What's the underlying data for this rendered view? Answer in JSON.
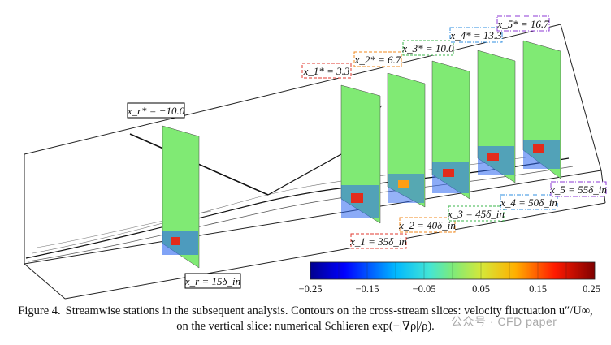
{
  "figure": {
    "stations_star": [
      {
        "label": "x_r* = −10.0",
        "color": "#000000"
      },
      {
        "label": "x_1* = 3.3",
        "color": "#e23a2f"
      },
      {
        "label": "x_2* = 6.7",
        "color": "#f08a1e"
      },
      {
        "label": "x_3* = 10.0",
        "color": "#39b54a"
      },
      {
        "label": "x_4* = 13.3",
        "color": "#2f8fe0"
      },
      {
        "label": "x_5* = 16.7",
        "color": "#8e3ad6"
      }
    ],
    "stations_delta": [
      {
        "label": "x_r = 15δ_in",
        "color": "#000000"
      },
      {
        "label": "x_1 = 35δ_in",
        "color": "#e23a2f"
      },
      {
        "label": "x_2 = 40δ_in",
        "color": "#f08a1e"
      },
      {
        "label": "x_3 = 45δ_in",
        "color": "#39b54a"
      },
      {
        "label": "x_4 = 50δ_in",
        "color": "#2f8fe0"
      },
      {
        "label": "x_5 = 55δ_in",
        "color": "#8e3ad6"
      }
    ],
    "colorbar": {
      "min": -0.25,
      "max": 0.25,
      "ticks": [
        "−0.25",
        "−0.15",
        "−0.05",
        "0.05",
        "0.15",
        "0.25"
      ]
    }
  },
  "caption": {
    "figure_number": "Figure  4.",
    "text": "Streamwise stations in the subsequent analysis. Contours on the cross-stream slices: velocity fluctuation u″/U∞, on the vertical slice: numerical Schlieren exp(−|∇ρ|/ρ)."
  },
  "watermark": "公众号 · CFD paper"
}
